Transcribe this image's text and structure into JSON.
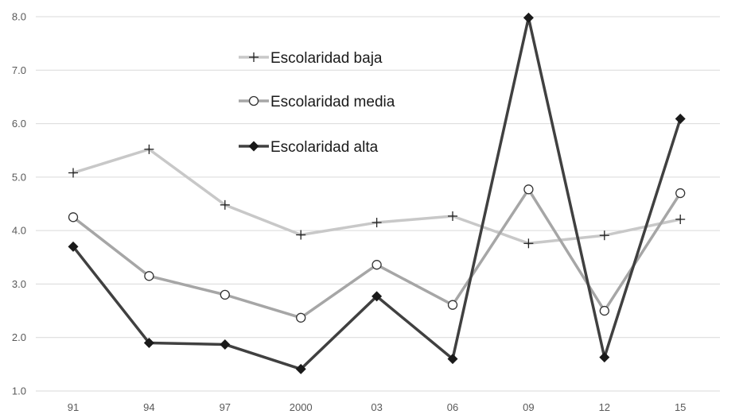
{
  "chart_data": {
    "type": "line",
    "categories": [
      "91",
      "94",
      "97",
      "2000",
      "03",
      "06",
      "09",
      "12",
      "15"
    ],
    "series": [
      {
        "name": "Escolaridad baja",
        "marker": "plus",
        "color": "#c8c8c8",
        "values": [
          5.08,
          5.52,
          4.48,
          3.92,
          4.15,
          4.27,
          3.76,
          3.91,
          4.21
        ]
      },
      {
        "name": "Escolaridad media",
        "marker": "circle",
        "color": "#a6a6a6",
        "values": [
          4.25,
          3.15,
          2.8,
          2.37,
          3.36,
          2.61,
          4.77,
          2.5,
          4.7
        ]
      },
      {
        "name": "Escolaridad alta",
        "marker": "diamond",
        "color": "#404040",
        "values": [
          3.7,
          1.9,
          1.87,
          1.41,
          2.77,
          1.6,
          7.98,
          1.63,
          6.09
        ]
      }
    ],
    "y_ticks": [
      "1.0",
      "2.0",
      "3.0",
      "4.0",
      "5.0",
      "6.0",
      "7.0",
      "8.0"
    ],
    "ylim": [
      1.0,
      8.0
    ],
    "grid": true,
    "legend_position": "upper-left-inside"
  }
}
